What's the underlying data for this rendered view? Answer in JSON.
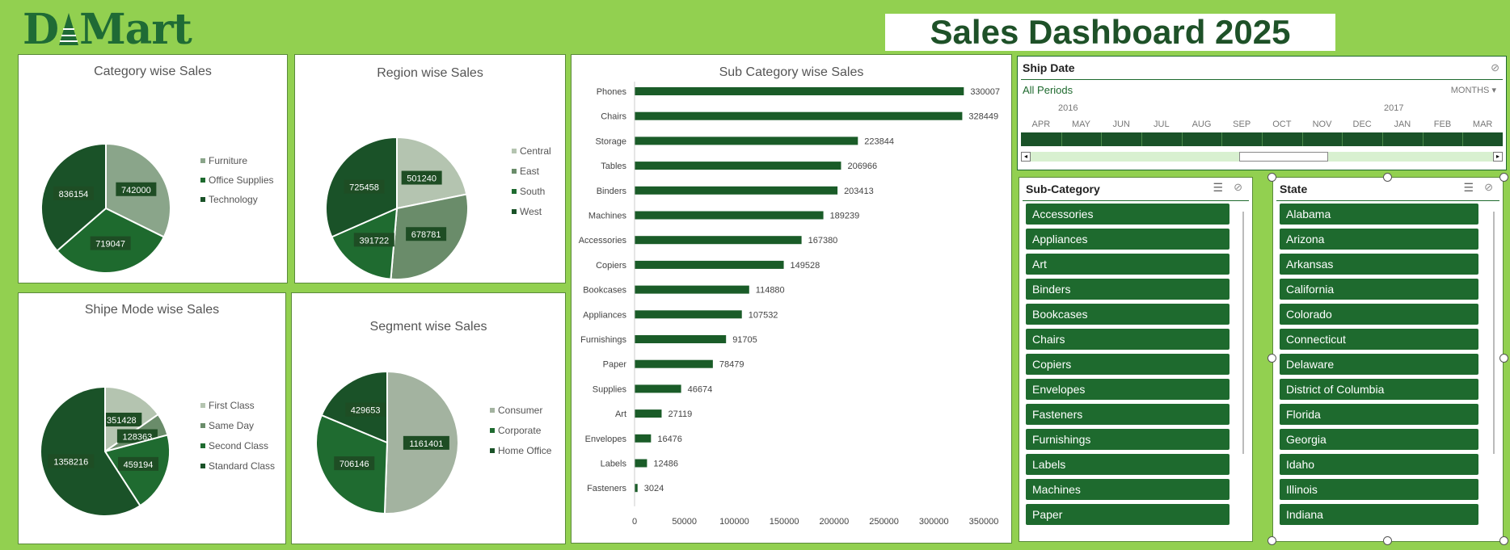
{
  "logo": {
    "text": "D",
    "text2": "Mart"
  },
  "title": "Sales Dashboard 2025",
  "colors": {
    "dark": "#1e5c28",
    "mid": "#1f7a32",
    "light": "#8fa98a",
    "lighter": "#a8b9a5",
    "bg": "#92d050"
  },
  "pies": {
    "category": {
      "title": "Category wise Sales",
      "slices": [
        {
          "label": "Furniture",
          "value": 742000,
          "color": "#8aa58a"
        },
        {
          "label": "Office Supplies",
          "value": 719047,
          "color": "#1e6a2e"
        },
        {
          "label": "Technology",
          "value": 836154,
          "color": "#1a5228"
        }
      ]
    },
    "region": {
      "title": "Region wise Sales",
      "slices": [
        {
          "label": "Central",
          "value": 501240,
          "color": "#b4c4b0"
        },
        {
          "label": "East",
          "value": 678781,
          "color": "#6a8c6a"
        },
        {
          "label": "South",
          "value": 391722,
          "color": "#1f6b30"
        },
        {
          "label": "West",
          "value": 725458,
          "color": "#1a5228"
        }
      ]
    },
    "shipmode": {
      "title": "Shipe Mode wise Sales",
      "slices": [
        {
          "label": "First Class",
          "value": 351428,
          "color": "#b4c4b0"
        },
        {
          "label": "Same Day",
          "value": 128363,
          "color": "#6a8c6a"
        },
        {
          "label": "Second Class",
          "value": 459194,
          "color": "#1f6b30"
        },
        {
          "label": "Standard Class",
          "value": 1358216,
          "color": "#1a5228"
        }
      ]
    },
    "segment": {
      "title": "Segment wise Sales",
      "slices": [
        {
          "label": "Consumer",
          "value": 1161401,
          "color": "#a3b3a0"
        },
        {
          "label": "Corporate",
          "value": 706146,
          "color": "#1f6b30"
        },
        {
          "label": "Home Office",
          "value": 429653,
          "color": "#1a5228"
        }
      ]
    }
  },
  "chart_data": {
    "type": "bar",
    "title": "Sub Category wise Sales",
    "categories": [
      "Phones",
      "Chairs",
      "Storage",
      "Tables",
      "Binders",
      "Machines",
      "Accessories",
      "Copiers",
      "Bookcases",
      "Appliances",
      "Furnishings",
      "Paper",
      "Supplies",
      "Art",
      "Envelopes",
      "Labels",
      "Fasteners"
    ],
    "values": [
      330007,
      328449,
      223844,
      206966,
      203413,
      189239,
      167380,
      149528,
      114880,
      107532,
      91705,
      78479,
      46674,
      27119,
      16476,
      12486,
      3024
    ],
    "xlim": [
      0,
      350000
    ],
    "xticks": [
      "0",
      "50000",
      "100000",
      "150000",
      "200000",
      "250000",
      "300000",
      "350000"
    ],
    "xtick_values": [
      0,
      50000,
      100000,
      150000,
      200000,
      250000,
      300000,
      350000
    ],
    "grid": false,
    "color": "#1a5c28"
  },
  "timeline": {
    "title": "Ship Date",
    "all_periods": "All Periods",
    "granularity": "MONTHS",
    "year1": "2016",
    "year2": "2017",
    "months": [
      "APR",
      "MAY",
      "JUN",
      "JUL",
      "AUG",
      "SEP",
      "OCT",
      "NOV",
      "DEC",
      "JAN",
      "FEB",
      "MAR"
    ]
  },
  "subcategory_slicer": {
    "title": "Sub-Category",
    "items": [
      "Accessories",
      "Appliances",
      "Art",
      "Binders",
      "Bookcases",
      "Chairs",
      "Copiers",
      "Envelopes",
      "Fasteners",
      "Furnishings",
      "Labels",
      "Machines",
      "Paper"
    ]
  },
  "state_slicer": {
    "title": "State",
    "items": [
      "Alabama",
      "Arizona",
      "Arkansas",
      "California",
      "Colorado",
      "Connecticut",
      "Delaware",
      "District of Columbia",
      "Florida",
      "Georgia",
      "Idaho",
      "Illinois",
      "Indiana"
    ]
  }
}
